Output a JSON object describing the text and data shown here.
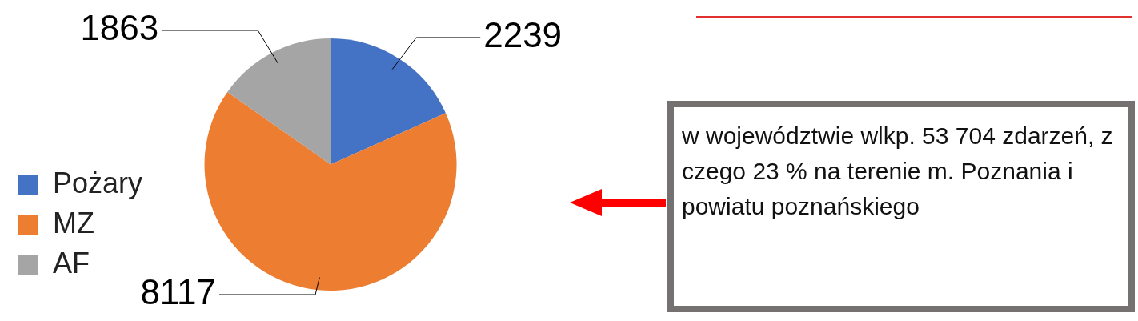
{
  "chart_data": {
    "type": "pie",
    "categories": [
      "Pożary",
      "MZ",
      "AF"
    ],
    "values": [
      2239,
      8117,
      1863
    ],
    "colors": [
      "#4472c4",
      "#ed7d31",
      "#a5a5a5"
    ],
    "data_labels": true,
    "legend": "bottom left",
    "annotations": [
      "w województwie wlkp. 53 704 zdarzeń, z czego 23 % na terenie m. Poznania i powiatu poznańskiego"
    ]
  }
}
